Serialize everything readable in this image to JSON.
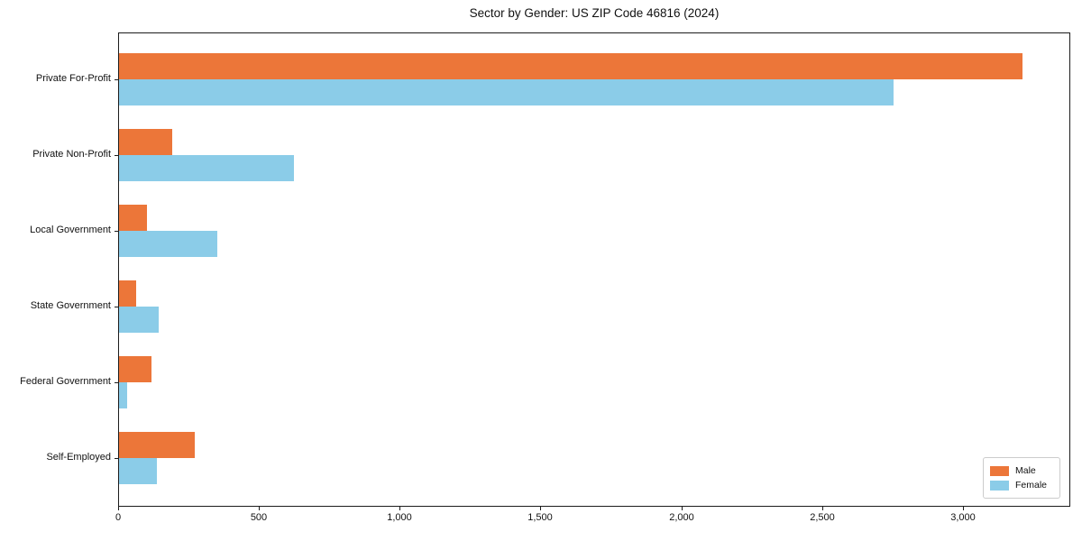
{
  "title": "Sector by Gender: US ZIP Code 46816 (2024)",
  "chart_data": {
    "type": "bar",
    "orientation": "horizontal",
    "title": "Sector by Gender: US ZIP Code 46816 (2024)",
    "categories": [
      "Private For-Profit",
      "Private Non-Profit",
      "Local Government",
      "State Government",
      "Federal Government",
      "Self-Employed"
    ],
    "series": [
      {
        "name": "Male",
        "color": "#EC7639",
        "values": [
          3210,
          190,
          100,
          60,
          115,
          270
        ]
      },
      {
        "name": "Female",
        "color": "#8BCCE8",
        "values": [
          2750,
          620,
          350,
          140,
          30,
          135
        ]
      }
    ],
    "xlabel": "",
    "ylabel": "",
    "xlim": [
      0,
      3375
    ],
    "xticks": [
      0,
      500,
      1000,
      1500,
      2000,
      2500,
      3000
    ],
    "xtick_labels": [
      "0",
      "500",
      "1,000",
      "1,500",
      "2,000",
      "2,500",
      "3,000"
    ],
    "grid": false,
    "legend_position": "lower right"
  }
}
